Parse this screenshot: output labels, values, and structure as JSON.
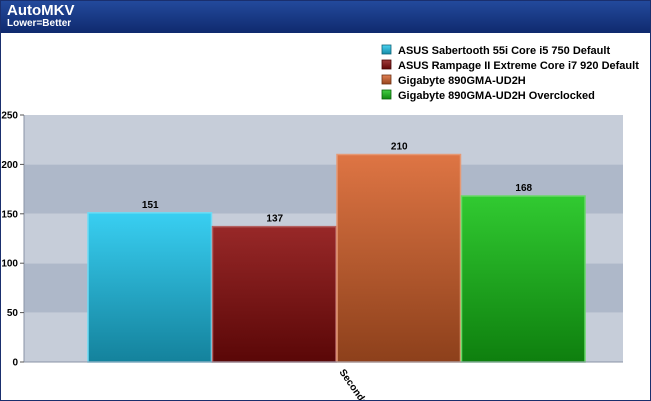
{
  "header": {
    "title": "AutoMKV",
    "subtitle": "Lower=Better"
  },
  "chart_data": {
    "type": "bar",
    "categories": [
      "Seconds"
    ],
    "series": [
      {
        "name": "ASUS Sabertooth 55i Core i5 750 Default",
        "values": [
          151
        ],
        "color": "#1ec8f0"
      },
      {
        "name": "ASUS Rampage II Extreme Core i7 920 Default",
        "values": [
          137
        ],
        "color": "#8a0b0b"
      },
      {
        "name": "Gigabyte 890GMA-UD2H",
        "values": [
          210
        ],
        "color": "#d9622a"
      },
      {
        "name": "Gigabyte 890GMA-UD2H Overclocked",
        "values": [
          168
        ],
        "color": "#15c315"
      }
    ],
    "ylim": [
      0,
      250
    ],
    "yticks": [
      0,
      50,
      100,
      150,
      200,
      250
    ],
    "grid": "alternating horizontal bands",
    "legend_position": "top-right",
    "title": "AutoMKV",
    "subtitle": "Lower=Better",
    "xlabel": "",
    "ylabel": ""
  }
}
